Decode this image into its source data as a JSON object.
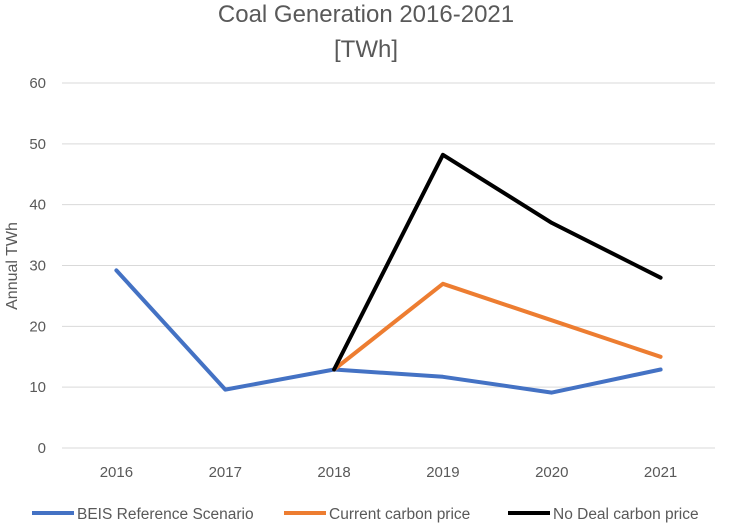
{
  "chart_data": {
    "type": "line",
    "title": "Coal Generation 2016-2021",
    "subtitle": "[TWh]",
    "xlabel": "",
    "ylabel": "Annual TWh",
    "categories": [
      "2016",
      "2017",
      "2018",
      "2019",
      "2020",
      "2021"
    ],
    "ylim": [
      0,
      60
    ],
    "yticks": [
      0,
      10,
      20,
      30,
      40,
      50,
      60
    ],
    "grid": true,
    "legend_position": "bottom",
    "series": [
      {
        "name": "BEIS Reference Scenario",
        "color": "#4472c4",
        "values": [
          29.2,
          9.6,
          12.9,
          11.7,
          9.1,
          12.9
        ]
      },
      {
        "name": "Current carbon price",
        "color": "#ed7d31",
        "values": [
          null,
          null,
          12.9,
          27.0,
          21.0,
          15.0
        ]
      },
      {
        "name": "No Deal carbon price",
        "color": "#000000",
        "values": [
          null,
          null,
          12.9,
          48.2,
          37.0,
          28.0
        ]
      }
    ]
  }
}
